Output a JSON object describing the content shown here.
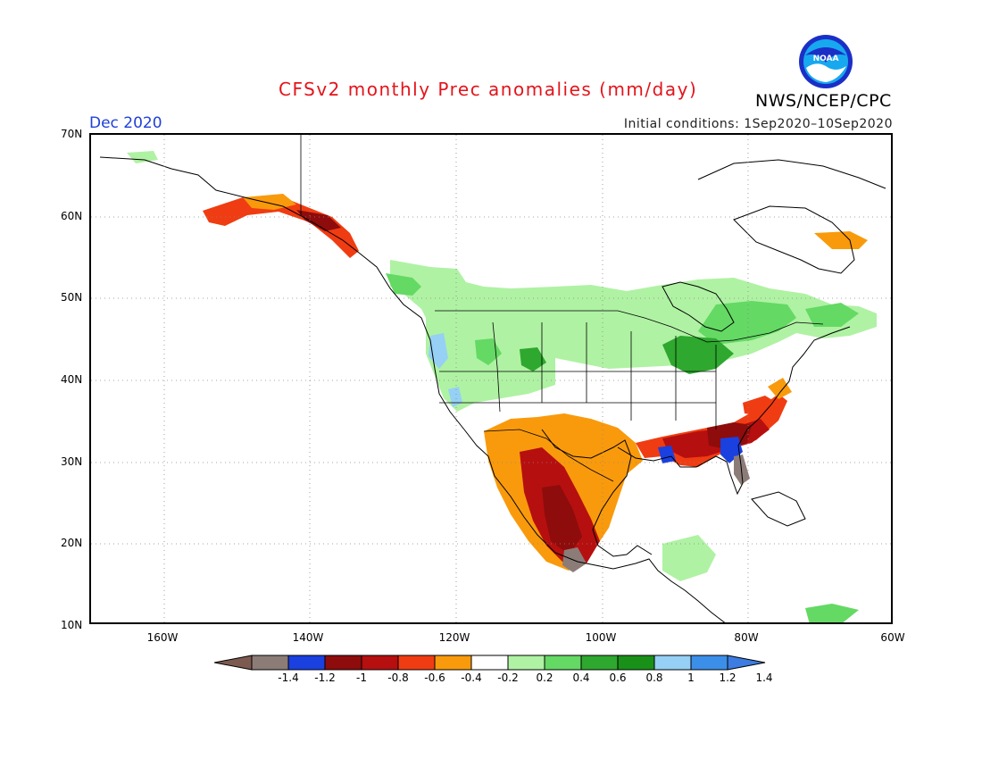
{
  "header": {
    "title": "CFSv2 monthly Prec anomalies (mm/day)",
    "agency": "NWS/NCEP/CPC",
    "logo_text": "NOAA",
    "month": "Dec 2020",
    "initial_conditions": "Initial conditions: 1Sep2020–10Sep2020"
  },
  "axes": {
    "lat_labels": [
      "70N",
      "60N",
      "50N",
      "40N",
      "30N",
      "20N",
      "10N"
    ],
    "lon_labels": [
      "160W",
      "140W",
      "120W",
      "100W",
      "80W",
      "60W"
    ]
  },
  "colorbar": {
    "ticks": [
      "-1.4",
      "-1.2",
      "-1",
      "-0.8",
      "-0.6",
      "-0.4",
      "-0.2",
      "0.2",
      "0.4",
      "0.6",
      "0.8",
      "1",
      "1.2",
      "1.4"
    ],
    "colors": [
      "#7d5a4f",
      "#8c7c78",
      "#1a40e0",
      "#8e0c0c",
      "#b60f0f",
      "#f03c12",
      "#f99a0c",
      "#ffffff",
      "#aff2a3",
      "#64d964",
      "#2ea82e",
      "#199119",
      "#96d0f5",
      "#3b8fe8",
      "#3d7ce0"
    ]
  },
  "colors": {
    "title": "#e4141b",
    "month": "#2040d8"
  }
}
